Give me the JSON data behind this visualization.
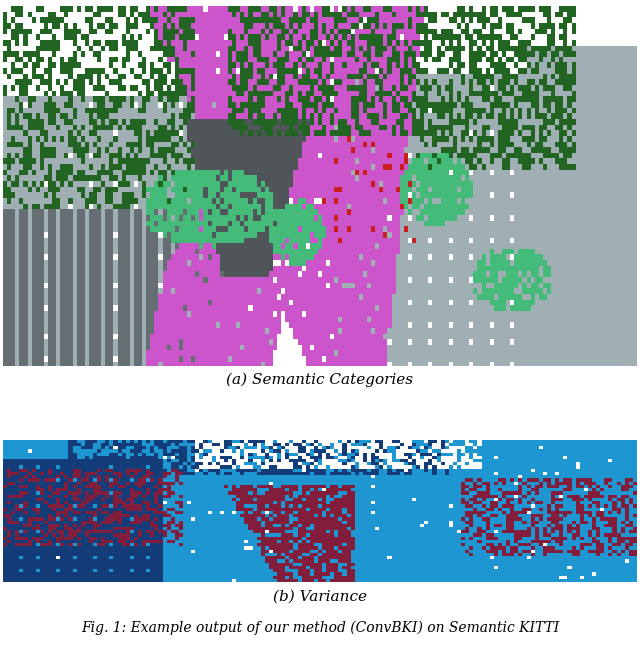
{
  "background_color": "#ffffff",
  "fig_width": 6.4,
  "fig_height": 6.47,
  "caption_a": "(a) Semantic Categories",
  "caption_b": "(b) Variance",
  "footer_text": "Fig. 1: Example output of our method (ConvBKI) on Semantic KITTI",
  "caption_fontsize": 11,
  "footer_fontsize": 10,
  "colors": {
    "road": [
      204,
      85,
      204
    ],
    "building_light": [
      160,
      175,
      180
    ],
    "building_dark": [
      100,
      110,
      115
    ],
    "ground_dark": [
      80,
      85,
      90
    ],
    "tree_dark": [
      34,
      100,
      34
    ],
    "tree_light": [
      68,
      187,
      120
    ],
    "red": [
      200,
      30,
      30
    ],
    "white": [
      255,
      255,
      255
    ],
    "blue_bright": [
      30,
      150,
      210
    ],
    "blue_dark": [
      20,
      60,
      120
    ],
    "wine": [
      130,
      30,
      60
    ],
    "blue_mid": [
      50,
      120,
      180
    ]
  }
}
